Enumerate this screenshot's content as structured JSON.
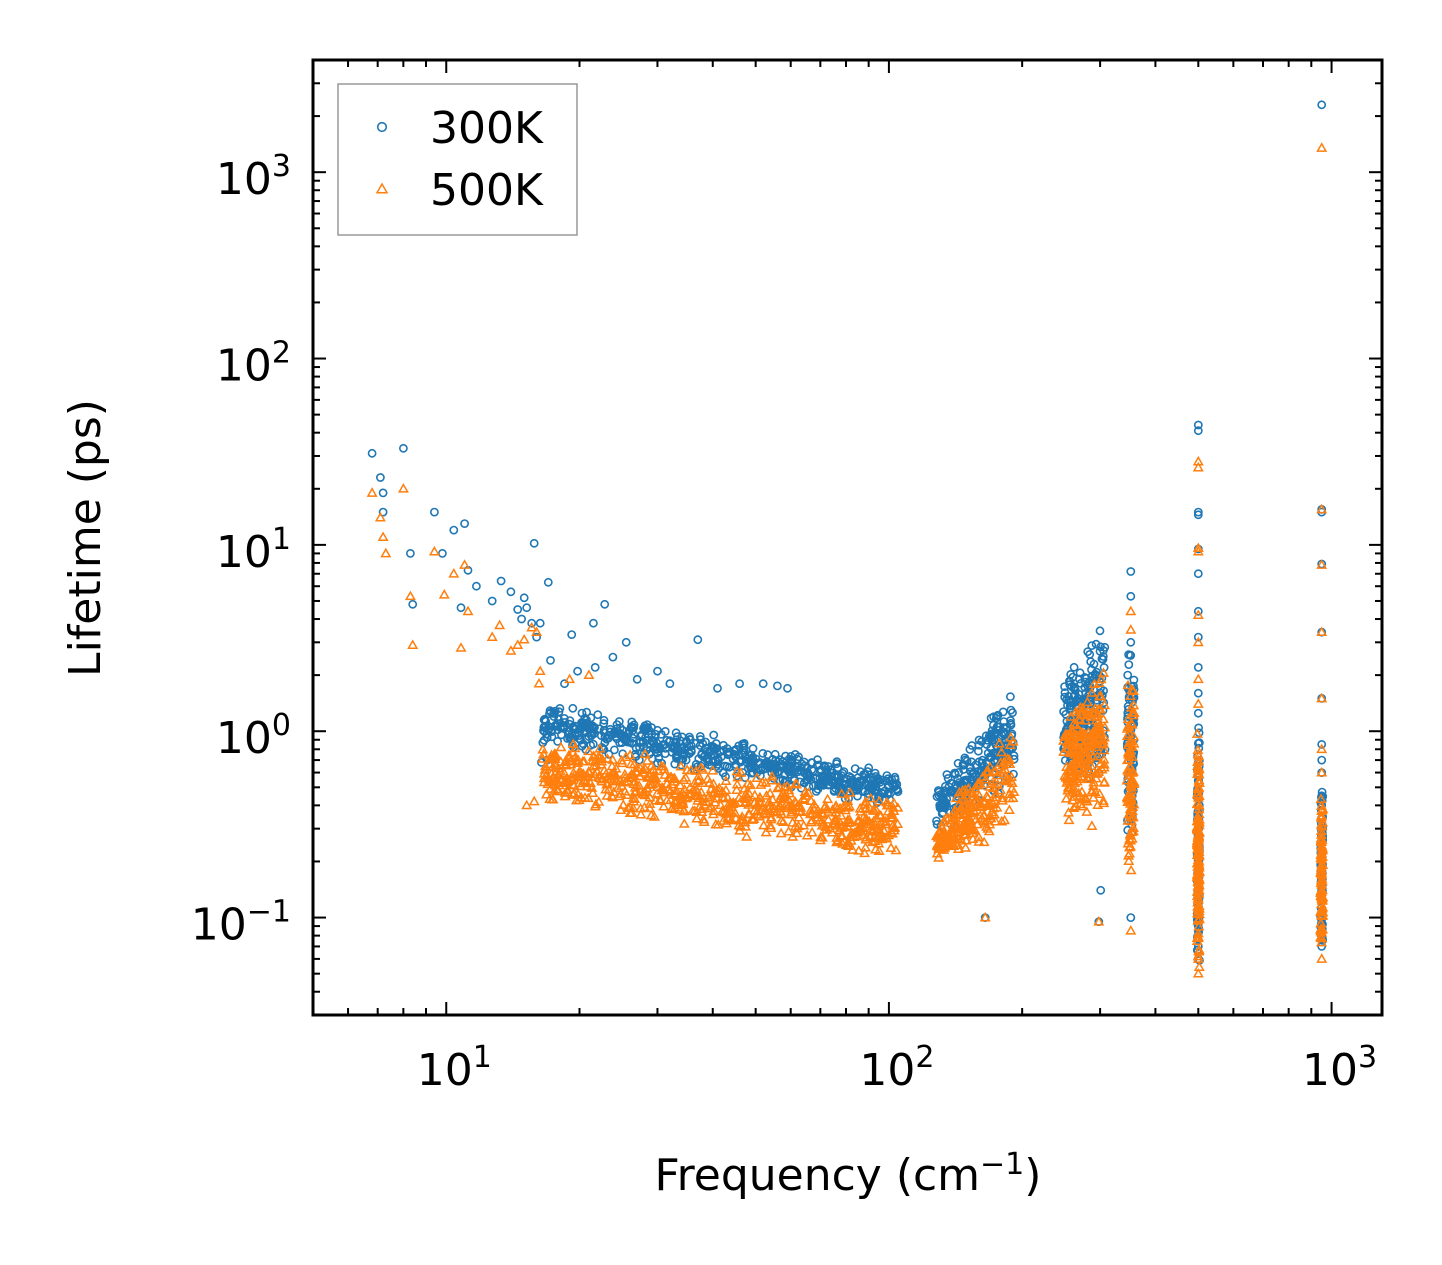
{
  "chart_data": {
    "type": "scatter",
    "title": "",
    "xlabel": "Frequency (cm",
    "xlabel_sup": "−1",
    "xlabel_tail": ")",
    "ylabel": "Lifetime (ps)",
    "xscale": "log",
    "yscale": "log",
    "xlim": [
      5,
      1300
    ],
    "ylim": [
      0.03,
      4000
    ],
    "x_ticks": [
      {
        "value": 10,
        "base": "10",
        "exp": "1"
      },
      {
        "value": 100,
        "base": "10",
        "exp": "2"
      },
      {
        "value": 1000,
        "base": "10",
        "exp": "3"
      }
    ],
    "y_ticks": [
      {
        "value": 0.1,
        "base": "10",
        "exp": "−1"
      },
      {
        "value": 1,
        "base": "10",
        "exp": "0"
      },
      {
        "value": 10,
        "base": "10",
        "exp": "1"
      },
      {
        "value": 100,
        "base": "10",
        "exp": "2"
      },
      {
        "value": 1000,
        "base": "10",
        "exp": "3"
      }
    ],
    "legend": {
      "placement": "top-left",
      "entries": [
        "300K",
        "500K"
      ]
    },
    "series": [
      {
        "name": "300K",
        "marker": "circle",
        "color": "#1f77b4",
        "points": [
          [
            6.8,
            31
          ],
          [
            7.1,
            23
          ],
          [
            7.2,
            19
          ],
          [
            7.2,
            15
          ],
          [
            8.0,
            33
          ],
          [
            8.3,
            9
          ],
          [
            8.4,
            4.8
          ],
          [
            9.4,
            15
          ],
          [
            9.8,
            9
          ],
          [
            10.4,
            12
          ],
          [
            10.8,
            4.6
          ],
          [
            11.0,
            13
          ],
          [
            11.2,
            7.3
          ],
          [
            11.7,
            6
          ],
          [
            12.7,
            5
          ],
          [
            13.3,
            6.4
          ],
          [
            14.0,
            5.6
          ],
          [
            14.5,
            4.5
          ],
          [
            14.8,
            4
          ],
          [
            15.0,
            5.2
          ],
          [
            15.2,
            4.6
          ],
          [
            15.6,
            3.8
          ],
          [
            15.8,
            10.2
          ],
          [
            16.0,
            3.2
          ],
          [
            16.3,
            3.8
          ],
          [
            17.0,
            6.3
          ],
          [
            17.2,
            2.4
          ],
          [
            16.4,
            0.68
          ],
          [
            16.9,
            0.7
          ],
          [
            17.5,
            1.2
          ],
          [
            18.5,
            1.8
          ],
          [
            19.2,
            3.3
          ],
          [
            19.8,
            2.1
          ],
          [
            21.5,
            3.8
          ],
          [
            21.7,
            2.2
          ],
          [
            22.8,
            4.8
          ],
          [
            23.8,
            2.5
          ],
          [
            25.5,
            3.0
          ],
          [
            27.0,
            1.9
          ],
          [
            30.0,
            2.1
          ],
          [
            32.0,
            1.8
          ],
          [
            37.0,
            3.1
          ],
          [
            41.0,
            1.7
          ],
          [
            46.0,
            1.8
          ],
          [
            52.0,
            1.8
          ],
          [
            56.0,
            1.75
          ],
          [
            59.0,
            1.7
          ],
          [
            165,
            0.1
          ],
          [
            298,
            0.095
          ],
          [
            301,
            0.14
          ],
          [
            352,
            0.1
          ],
          [
            352,
            7.2
          ],
          [
            352,
            5.3
          ],
          [
            352,
            3.0
          ],
          [
            500,
            44
          ],
          [
            500,
            41
          ],
          [
            500,
            15
          ],
          [
            500,
            14.5
          ],
          [
            500,
            9.5
          ],
          [
            500,
            7
          ],
          [
            500,
            4.4
          ],
          [
            500,
            3.2
          ],
          [
            500,
            2.2
          ],
          [
            500,
            1.6
          ],
          [
            500,
            1.25
          ],
          [
            500,
            0.07
          ],
          [
            500,
            0.06
          ],
          [
            950,
            2300
          ],
          [
            950,
            15.5
          ],
          [
            950,
            15
          ],
          [
            950,
            7.9
          ],
          [
            950,
            3.4
          ],
          [
            950,
            1.5
          ],
          [
            950,
            0.85
          ],
          [
            950,
            0.7
          ],
          [
            950,
            0.6
          ],
          [
            950,
            0.45
          ],
          [
            950,
            0.4
          ],
          [
            950,
            0.07
          ]
        ],
        "clusters": [
          {
            "xrange": [
              16.5,
              105
            ],
            "ymin_start": 0.85,
            "ymin_end": 0.38,
            "ymax_start": 1.5,
            "ymax_end": 0.6,
            "n": 650
          },
          {
            "xrange": [
              128,
              192
            ],
            "ymin_start": 0.28,
            "ymin_end": 0.5,
            "ymax_start": 0.5,
            "ymax_end": 1.8,
            "n": 230
          },
          {
            "xrange": [
              248,
              308
            ],
            "ymin_start": 0.5,
            "ymin_end": 0.5,
            "ymax_start": 2.0,
            "ymax_end": 4.3,
            "n": 230
          },
          {
            "xrange": [
              345,
              358
            ],
            "ymin_start": 0.25,
            "ymin_end": 0.25,
            "ymax_start": 3.0,
            "ymax_end": 3.0,
            "n": 90
          },
          {
            "xrange": [
              497,
              503
            ],
            "ymin_start": 0.05,
            "ymin_end": 0.05,
            "ymax_start": 1.2,
            "ymax_end": 1.2,
            "n": 130
          },
          {
            "xrange": [
              945,
              955
            ],
            "ymin_start": 0.06,
            "ymin_end": 0.06,
            "ymax_start": 0.6,
            "ymax_end": 0.6,
            "n": 90
          }
        ]
      },
      {
        "name": "500K",
        "marker": "triangle",
        "color": "#ff7f0e",
        "points": [
          [
            6.8,
            19
          ],
          [
            7.1,
            14
          ],
          [
            7.2,
            11
          ],
          [
            7.3,
            9
          ],
          [
            8.0,
            20
          ],
          [
            8.3,
            5.3
          ],
          [
            8.4,
            2.9
          ],
          [
            9.4,
            9.2
          ],
          [
            9.9,
            5.4
          ],
          [
            10.4,
            7
          ],
          [
            10.8,
            2.8
          ],
          [
            11.0,
            7.8
          ],
          [
            11.2,
            4.4
          ],
          [
            12.7,
            3.2
          ],
          [
            13.2,
            3.7
          ],
          [
            14.0,
            2.7
          ],
          [
            14.5,
            2.9
          ],
          [
            15.0,
            3.1
          ],
          [
            15.6,
            3.6
          ],
          [
            16.0,
            3.4
          ],
          [
            16.2,
            1.8
          ],
          [
            15.2,
            0.4
          ],
          [
            15.8,
            0.42
          ],
          [
            16.3,
            2.1
          ],
          [
            19.0,
            1.9
          ],
          [
            21.0,
            2.0
          ],
          [
            165,
            0.1
          ],
          [
            298,
            0.095
          ],
          [
            352,
            0.085
          ],
          [
            352,
            4.4
          ],
          [
            352,
            3.5
          ],
          [
            500,
            28
          ],
          [
            500,
            26
          ],
          [
            500,
            9.6
          ],
          [
            500,
            9.2
          ],
          [
            500,
            4.2
          ],
          [
            500,
            3.0
          ],
          [
            500,
            1.9
          ],
          [
            500,
            1.4
          ],
          [
            500,
            0.06
          ],
          [
            500,
            0.05
          ],
          [
            950,
            1350
          ],
          [
            950,
            15.5
          ],
          [
            950,
            7.8
          ],
          [
            950,
            3.4
          ],
          [
            950,
            1.5
          ],
          [
            950,
            0.8
          ],
          [
            950,
            0.6
          ],
          [
            950,
            0.06
          ]
        ],
        "clusters": [
          {
            "xrange": [
              16.5,
              105
            ],
            "ymin_start": 0.4,
            "ymin_end": 0.2,
            "ymax_start": 0.95,
            "ymax_end": 0.45,
            "n": 700
          },
          {
            "xrange": [
              128,
              192
            ],
            "ymin_start": 0.19,
            "ymin_end": 0.28,
            "ymax_start": 0.35,
            "ymax_end": 1.1,
            "n": 230
          },
          {
            "xrange": [
              248,
              308
            ],
            "ymin_start": 0.3,
            "ymin_end": 0.3,
            "ymax_start": 1.2,
            "ymax_end": 2.5,
            "n": 230
          },
          {
            "xrange": [
              345,
              358
            ],
            "ymin_start": 0.17,
            "ymin_end": 0.17,
            "ymax_start": 2.0,
            "ymax_end": 2.0,
            "n": 90
          },
          {
            "xrange": [
              497,
              503
            ],
            "ymin_start": 0.05,
            "ymin_end": 0.05,
            "ymax_start": 1.0,
            "ymax_end": 1.0,
            "n": 130
          },
          {
            "xrange": [
              945,
              955
            ],
            "ymin_start": 0.055,
            "ymin_end": 0.055,
            "ymax_start": 0.5,
            "ymax_end": 0.5,
            "n": 90
          }
        ]
      }
    ]
  }
}
